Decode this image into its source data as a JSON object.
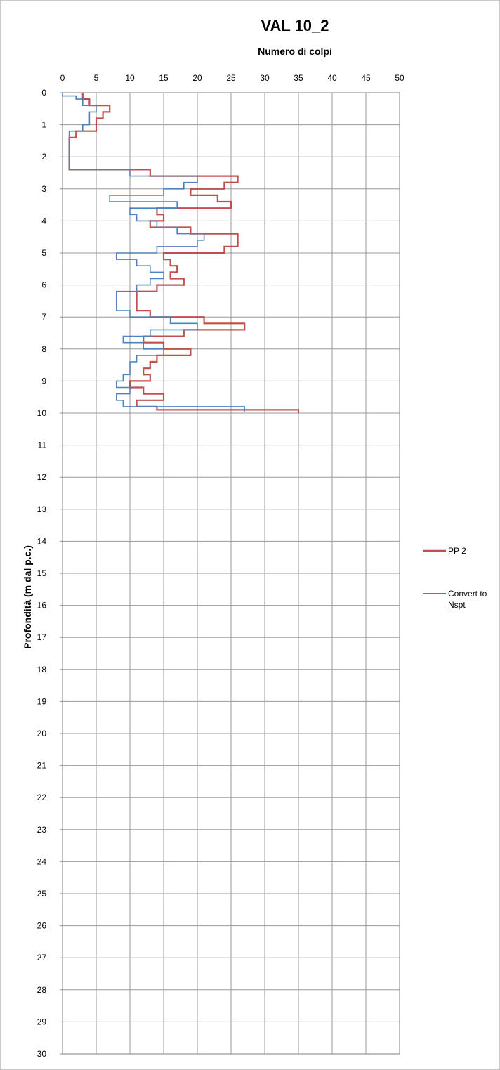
{
  "chart_data": {
    "type": "line",
    "title": "VAL 10_2",
    "xlabel": "Numero di colpi",
    "ylabel": "Profondità (m dal p.c.)",
    "xlim": [
      0,
      50
    ],
    "ylim": [
      0,
      30
    ],
    "x_ticks": [
      0,
      5,
      10,
      15,
      20,
      25,
      30,
      35,
      40,
      45,
      50
    ],
    "y_ticks": [
      0,
      1,
      2,
      3,
      4,
      5,
      6,
      7,
      8,
      9,
      10,
      11,
      12,
      13,
      14,
      15,
      16,
      17,
      18,
      19,
      20,
      21,
      22,
      23,
      24,
      25,
      26,
      27,
      28,
      29,
      30
    ],
    "grid": true,
    "legend_position": "right",
    "series": [
      {
        "name": "PP 2",
        "color": "#c0504d",
        "steps": [
          [
            0.0,
            3
          ],
          [
            0.2,
            4
          ],
          [
            0.4,
            7
          ],
          [
            0.6,
            6
          ],
          [
            0.8,
            5
          ],
          [
            1.0,
            5
          ],
          [
            1.2,
            2
          ],
          [
            1.4,
            1
          ],
          [
            2.2,
            1
          ],
          [
            2.4,
            13
          ],
          [
            2.6,
            26
          ],
          [
            2.8,
            24
          ],
          [
            3.0,
            19
          ],
          [
            3.2,
            23
          ],
          [
            3.4,
            25
          ],
          [
            3.6,
            14
          ],
          [
            3.8,
            15
          ],
          [
            4.0,
            13
          ],
          [
            4.2,
            19
          ],
          [
            4.4,
            26
          ],
          [
            4.6,
            26
          ],
          [
            4.8,
            24
          ],
          [
            5.0,
            15
          ],
          [
            5.2,
            16
          ],
          [
            5.4,
            17
          ],
          [
            5.6,
            16
          ],
          [
            5.8,
            18
          ],
          [
            6.0,
            14
          ],
          [
            6.2,
            11
          ],
          [
            6.8,
            13
          ],
          [
            7.0,
            21
          ],
          [
            7.2,
            27
          ],
          [
            7.4,
            18
          ],
          [
            7.6,
            12
          ],
          [
            7.8,
            15
          ],
          [
            8.0,
            19
          ],
          [
            8.2,
            14
          ],
          [
            8.4,
            13
          ],
          [
            8.6,
            12
          ],
          [
            8.8,
            13
          ],
          [
            9.0,
            10
          ],
          [
            9.2,
            12
          ],
          [
            9.4,
            15
          ],
          [
            9.6,
            11
          ],
          [
            9.8,
            14
          ],
          [
            9.9,
            35
          ]
        ],
        "end_depth": 10.0
      },
      {
        "name": "Convert to Nspt",
        "color": "#4f81bd",
        "steps": [
          [
            0.0,
            0
          ],
          [
            0.1,
            2
          ],
          [
            0.2,
            3
          ],
          [
            0.4,
            5
          ],
          [
            0.6,
            4
          ],
          [
            0.8,
            4
          ],
          [
            1.0,
            3
          ],
          [
            1.2,
            1
          ],
          [
            1.4,
            1
          ],
          [
            2.2,
            1
          ],
          [
            2.4,
            10
          ],
          [
            2.6,
            20
          ],
          [
            2.8,
            18
          ],
          [
            3.0,
            15
          ],
          [
            3.2,
            7
          ],
          [
            3.4,
            17
          ],
          [
            3.6,
            10
          ],
          [
            3.8,
            11
          ],
          [
            4.0,
            14
          ],
          [
            4.2,
            17
          ],
          [
            4.4,
            21
          ],
          [
            4.6,
            20
          ],
          [
            4.8,
            14
          ],
          [
            5.0,
            8
          ],
          [
            5.2,
            11
          ],
          [
            5.4,
            13
          ],
          [
            5.6,
            15
          ],
          [
            5.8,
            13
          ],
          [
            6.0,
            11
          ],
          [
            6.2,
            8
          ],
          [
            6.8,
            10
          ],
          [
            7.0,
            16
          ],
          [
            7.2,
            20
          ],
          [
            7.4,
            13
          ],
          [
            7.6,
            9
          ],
          [
            7.8,
            12
          ],
          [
            8.0,
            15
          ],
          [
            8.2,
            11
          ],
          [
            8.4,
            10
          ],
          [
            8.6,
            10
          ],
          [
            8.8,
            9
          ],
          [
            9.0,
            8
          ],
          [
            9.2,
            10
          ],
          [
            9.4,
            8
          ],
          [
            9.6,
            9
          ],
          [
            9.8,
            27
          ]
        ],
        "end_depth": 9.95
      }
    ]
  }
}
